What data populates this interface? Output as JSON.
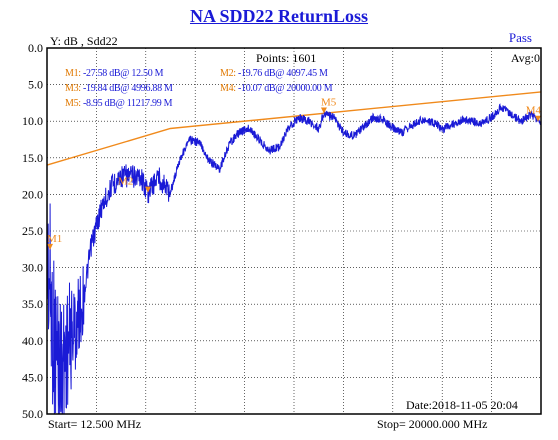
{
  "header": {
    "title": "NA  SDD22  ReturnLoss",
    "status": "Pass",
    "y_unit": "Y: dB , Sdd22",
    "points": "Points: 1601",
    "avg": "Avg:0"
  },
  "markers": [
    {
      "tag": "M1:",
      "text": " -27.58 dB@ 12.50 M",
      "label": "M1",
      "x": 12.5,
      "y": 27.58
    },
    {
      "tag": "M2:",
      "text": " -19.76 dB@ 4097.45 M",
      "label": "M2",
      "x": 4097.45,
      "y": 19.76
    },
    {
      "tag": "M3:",
      "text": " -19.84 dB@ 4996.88 M",
      "label": "M3",
      "x": 4996.88,
      "y": 19.84
    },
    {
      "tag": "M4:",
      "text": " -10.07 dB@ 20000.00 M",
      "label": "M4",
      "x": 20000,
      "y": 10.07
    },
    {
      "tag": "M5:",
      "text": " -8.95 dB@ 11217.99 M",
      "label": "M5",
      "x": 11217.99,
      "y": 8.95
    }
  ],
  "footer": {
    "date": "Date:2018-11-05 20:04",
    "start": "Start= 12.500 MHz",
    "stop": "Stop=  20000.000 MHz"
  },
  "chart_data": {
    "type": "line",
    "x_unit": "MHz",
    "xlim": [
      12.5,
      20000
    ],
    "ylim": [
      0,
      50
    ],
    "y_reversed": true,
    "yticks": [
      "0.0",
      "5.0",
      "10.0",
      "15.0",
      "20.0",
      "25.0",
      "30.0",
      "35.0",
      "40.0",
      "45.0",
      "50.0"
    ],
    "grid": true,
    "series": [
      {
        "kind": "limit",
        "color": "#f08a1c",
        "x": [
          12.5,
          5000,
          20000
        ],
        "y": [
          16.0,
          11.0,
          6.0
        ]
      },
      {
        "kind": "measured",
        "color": "#1a1ad6",
        "x": [
          12.5,
          300,
          600,
          900,
          1200,
          1500,
          1800,
          2200,
          2600,
          3000,
          3400,
          3800,
          4100,
          4500,
          5000,
          5400,
          5800,
          6200,
          6600,
          7000,
          7400,
          7800,
          8200,
          8600,
          9000,
          9400,
          9800,
          10200,
          10600,
          11000,
          11218,
          11600,
          12000,
          12400,
          12800,
          13200,
          13600,
          14000,
          14400,
          14800,
          15200,
          15600,
          16000,
          16400,
          16800,
          17200,
          17600,
          18000,
          18400,
          18800,
          19200,
          19600,
          20000
        ],
        "y": [
          27.6,
          40.0,
          44.0,
          40.0,
          38.0,
          34.0,
          27.0,
          22.0,
          19.0,
          17.5,
          17.5,
          17.5,
          19.8,
          17.5,
          19.8,
          15.0,
          12.5,
          13.0,
          15.5,
          16.5,
          13.0,
          11.5,
          11.0,
          12.5,
          14.0,
          13.5,
          11.0,
          9.5,
          10.0,
          11.0,
          9.0,
          9.5,
          11.5,
          12.0,
          11.0,
          9.5,
          9.8,
          11.0,
          11.5,
          10.5,
          9.8,
          10.2,
          11.0,
          10.5,
          9.8,
          10.0,
          10.3,
          9.5,
          8.0,
          9.0,
          10.0,
          9.0,
          10.1
        ]
      }
    ]
  }
}
